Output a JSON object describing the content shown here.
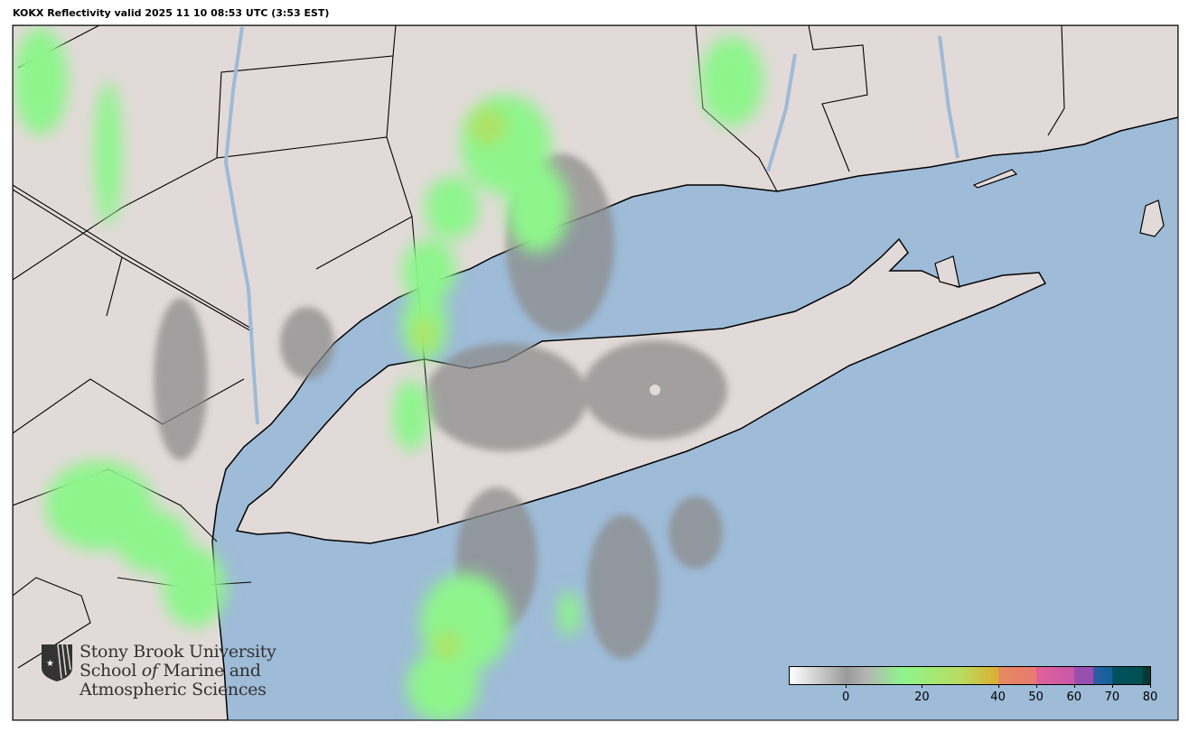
{
  "title": "KOKX Reflectivity valid 2025 11 10 08:53 UTC (3:53 EST)",
  "colors": {
    "ocean": "#9ebbd7",
    "land": "#e2dad8",
    "radar_green": "#8ef58c",
    "radar_yellow": "#c8d44a",
    "radar_gray": "#8c8c8c"
  },
  "colorbar": {
    "min": -15,
    "max": 80,
    "ticks": [
      "0",
      "20",
      "40",
      "50",
      "60",
      "70",
      "80"
    ],
    "tick_values": [
      0,
      20,
      40,
      50,
      60,
      70,
      80
    ],
    "stops": [
      {
        "value": -15,
        "color": "#ffffff"
      },
      {
        "value": 0,
        "color": "#9a9a9a"
      },
      {
        "value": 5,
        "color": "#b4b4b4"
      },
      {
        "value": 15,
        "color": "#8ef58c"
      },
      {
        "value": 30,
        "color": "#b8dc60"
      },
      {
        "value": 40,
        "color": "#dcae30"
      },
      {
        "value": 40.1,
        "color": "#e68a60"
      },
      {
        "value": 50,
        "color": "#e87a70"
      },
      {
        "value": 50.1,
        "color": "#e0609a"
      },
      {
        "value": 60,
        "color": "#c858a8"
      },
      {
        "value": 60.1,
        "color": "#9850b0"
      },
      {
        "value": 65,
        "color": "#9850b0"
      },
      {
        "value": 65.1,
        "color": "#2c5ea0"
      },
      {
        "value": 70,
        "color": "#10609a"
      },
      {
        "value": 70.1,
        "color": "#005060"
      },
      {
        "value": 78,
        "color": "#005050"
      },
      {
        "value": 78.1,
        "color": "#003a30"
      },
      {
        "value": 80,
        "color": "#003a30"
      }
    ]
  },
  "logo": {
    "line1": "Stony Brook University",
    "line2a": "School ",
    "line2b": "of",
    "line2c": " Marine and",
    "line3": "Atmospheric Sciences"
  }
}
